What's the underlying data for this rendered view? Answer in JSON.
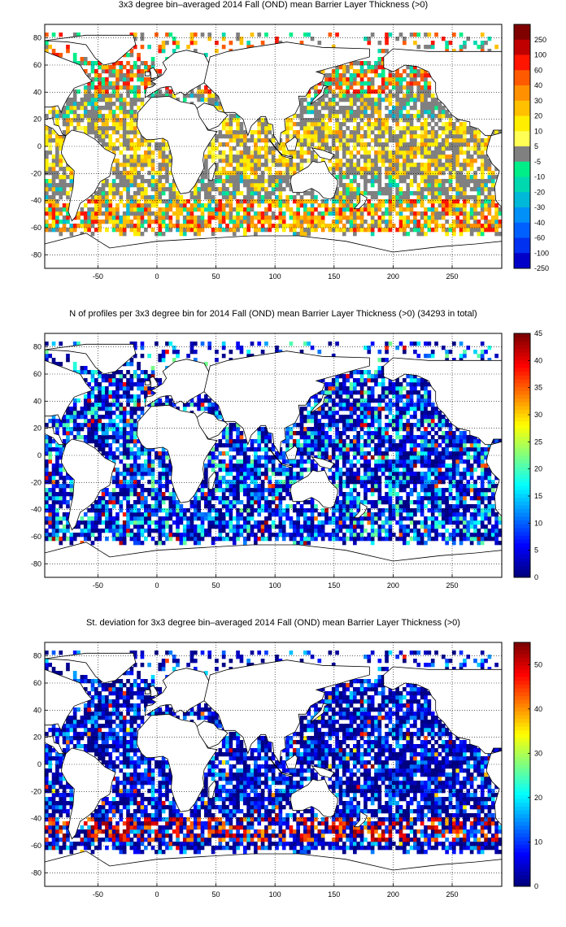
{
  "chart_data": [
    {
      "type": "heatmap",
      "title": "3x3 degree bin–averaged 2014 Fall (OND) mean Barrier Layer Thickness (>0)",
      "xlabel": "",
      "ylabel": "",
      "xlim": [
        -95,
        292
      ],
      "ylim": [
        -90,
        90
      ],
      "x_ticks": [
        -50,
        0,
        50,
        100,
        150,
        200,
        250
      ],
      "y_ticks": [
        80,
        60,
        40,
        20,
        0,
        -20,
        -40,
        -60,
        -80
      ],
      "grid": true,
      "colorbar_type": "categorical",
      "colorbar_labels": [
        "250",
        "100",
        "60",
        "40",
        "30",
        "20",
        "10",
        "5",
        "-5",
        "-10",
        "-20",
        "-30",
        "-40",
        "-60",
        "-100",
        "-250"
      ],
      "colorbar_colors": [
        "#800000",
        "#c00000",
        "#ff1500",
        "#ff5a00",
        "#ff9000",
        "#ffc000",
        "#ffee00",
        "#ffff55",
        "#808080",
        "#00ee88",
        "#00d8b0",
        "#00b8d8",
        "#0090f8",
        "#0060ff",
        "#0030f0",
        "#0000c8"
      ],
      "bin_size_deg": 3,
      "colormap": "categorical",
      "binned_field": "mean barrier layer thickness (BLT, m; colour bins as in colorbar)"
    },
    {
      "type": "heatmap",
      "title": "N of profiles per 3x3 degree bin for 2014 Fall (OND) mean Barrier Layer Thickness (>0) (34293 in total)",
      "xlabel": "",
      "ylabel": "",
      "xlim": [
        -95,
        292
      ],
      "ylim": [
        -90,
        90
      ],
      "x_ticks": [
        -50,
        0,
        50,
        100,
        150,
        200,
        250
      ],
      "y_ticks": [
        80,
        60,
        40,
        20,
        0,
        -20,
        -40,
        -60,
        -80
      ],
      "grid": true,
      "colorbar_type": "continuous",
      "colorbar_ticks": [
        0,
        5,
        10,
        15,
        20,
        25,
        30,
        35,
        40,
        45
      ],
      "colorbar_range": [
        0,
        45
      ],
      "bin_size_deg": 3,
      "colormap": "jet",
      "binned_field": "number of profiles per bin"
    },
    {
      "type": "heatmap",
      "title": "St. deviation for 3x3 degree bin–averaged 2014 Fall (OND) mean Barrier Layer Thickness (>0)",
      "xlabel": "",
      "ylabel": "",
      "xlim": [
        -95,
        292
      ],
      "ylim": [
        -90,
        90
      ],
      "x_ticks": [
        -50,
        0,
        50,
        100,
        150,
        200,
        250
      ],
      "y_ticks": [
        80,
        60,
        40,
        20,
        0,
        -20,
        -40,
        -60,
        -80
      ],
      "grid": true,
      "colorbar_type": "continuous",
      "colorbar_ticks": [
        0,
        10,
        20,
        30,
        40,
        50
      ],
      "colorbar_range": [
        0,
        55
      ],
      "bin_size_deg": 3,
      "colormap": "jet",
      "binned_field": "standard deviation of BLT per bin (m)"
    }
  ]
}
